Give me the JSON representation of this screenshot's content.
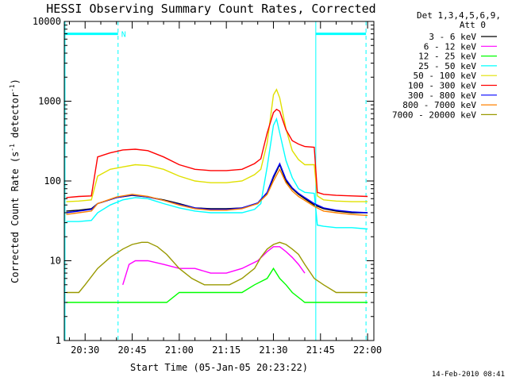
{
  "chart_data": {
    "type": "line",
    "title": "HESSI Observing Summary Count Rates, Corrected",
    "xlabel": "Start Time (05-Jan-05 20:23:22)",
    "ylabel": "Corrected Count Rate (s",
    "ylabel_sup": "-1",
    "ylabel_rest": " detector",
    "ylabel_sup2": "-1",
    "ylabel_end": ")",
    "yscale": "log",
    "ylim": [
      1,
      10000
    ],
    "yticks": [
      "1",
      "10",
      "100",
      "1000",
      "10000"
    ],
    "xlim_min": [
      23.37,
      122.0
    ],
    "xticks": [
      {
        "label": "20:30",
        "min": 30
      },
      {
        "label": "20:45",
        "min": 45
      },
      {
        "label": "21:00",
        "min": 60
      },
      {
        "label": "21:15",
        "min": 75
      },
      {
        "label": "21:30",
        "min": 90
      },
      {
        "label": "21:45",
        "min": 105
      },
      {
        "label": "22:00",
        "min": 120
      }
    ],
    "legend_header": [
      "Det 1,3,4,5,6,9,",
      "Att 0"
    ],
    "series": [
      {
        "name": "3 - 6 keV",
        "color": "#000000",
        "points": [
          [
            24,
            42
          ],
          [
            28,
            43
          ],
          [
            32,
            45
          ],
          [
            34,
            52
          ],
          [
            40,
            62
          ],
          [
            45,
            66
          ],
          [
            50,
            63
          ],
          [
            55,
            58
          ],
          [
            60,
            52
          ],
          [
            65,
            46
          ],
          [
            70,
            45
          ],
          [
            75,
            45
          ],
          [
            80,
            46
          ],
          [
            85,
            52
          ],
          [
            88,
            70
          ],
          [
            90,
            110
          ],
          [
            92,
            160
          ],
          [
            94,
            100
          ],
          [
            96,
            80
          ],
          [
            98,
            68
          ],
          [
            100,
            60
          ],
          [
            103,
            50
          ],
          [
            106,
            45
          ],
          [
            110,
            42
          ],
          [
            115,
            40
          ],
          [
            120,
            40
          ]
        ]
      },
      {
        "name": "6 - 12 keV",
        "color": "#ff00ff",
        "points": [
          [
            42,
            5
          ],
          [
            44,
            9
          ],
          [
            46,
            10
          ],
          [
            50,
            10
          ],
          [
            55,
            9
          ],
          [
            60,
            8
          ],
          [
            65,
            8
          ],
          [
            70,
            7
          ],
          [
            75,
            7
          ],
          [
            80,
            8
          ],
          [
            85,
            10
          ],
          [
            88,
            13
          ],
          [
            90,
            15
          ],
          [
            92,
            15
          ],
          [
            94,
            13
          ],
          [
            96,
            11
          ],
          [
            98,
            9
          ],
          [
            100,
            7
          ]
        ]
      },
      {
        "name": "12 - 25 keV",
        "color": "#00ff00",
        "points": [
          [
            24,
            3
          ],
          [
            28,
            3
          ],
          [
            32,
            3
          ],
          [
            36,
            3
          ],
          [
            40,
            3
          ],
          [
            44,
            3
          ],
          [
            48,
            3
          ],
          [
            52,
            3
          ],
          [
            56,
            3
          ],
          [
            60,
            4
          ],
          [
            64,
            4
          ],
          [
            68,
            4
          ],
          [
            72,
            4
          ],
          [
            76,
            4
          ],
          [
            80,
            4
          ],
          [
            84,
            5
          ],
          [
            88,
            6
          ],
          [
            90,
            8
          ],
          [
            92,
            6
          ],
          [
            94,
            5
          ],
          [
            96,
            4
          ],
          [
            100,
            3
          ],
          [
            104,
            3
          ],
          [
            108,
            3
          ],
          [
            112,
            3
          ],
          [
            116,
            3
          ],
          [
            120,
            3
          ]
        ]
      },
      {
        "name": "25 - 50 keV",
        "color": "#00ffff",
        "points": [
          [
            24,
            31
          ],
          [
            28,
            31
          ],
          [
            32,
            32
          ],
          [
            34,
            40
          ],
          [
            38,
            50
          ],
          [
            42,
            58
          ],
          [
            46,
            62
          ],
          [
            50,
            60
          ],
          [
            55,
            52
          ],
          [
            60,
            46
          ],
          [
            65,
            42
          ],
          [
            70,
            40
          ],
          [
            75,
            40
          ],
          [
            80,
            40
          ],
          [
            84,
            44
          ],
          [
            86,
            52
          ],
          [
            88,
            150
          ],
          [
            90,
            500
          ],
          [
            91,
            600
          ],
          [
            92,
            400
          ],
          [
            94,
            180
          ],
          [
            96,
            110
          ],
          [
            98,
            80
          ],
          [
            100,
            72
          ],
          [
            103,
            70
          ],
          [
            104,
            28
          ],
          [
            106,
            27
          ],
          [
            110,
            26
          ],
          [
            115,
            26
          ],
          [
            120,
            25
          ]
        ]
      },
      {
        "name": "50 - 100 keV",
        "color": "#e0e000",
        "points": [
          [
            24,
            55
          ],
          [
            28,
            56
          ],
          [
            32,
            58
          ],
          [
            34,
            115
          ],
          [
            38,
            140
          ],
          [
            42,
            150
          ],
          [
            46,
            160
          ],
          [
            50,
            156
          ],
          [
            55,
            140
          ],
          [
            60,
            115
          ],
          [
            65,
            100
          ],
          [
            70,
            95
          ],
          [
            75,
            95
          ],
          [
            80,
            100
          ],
          [
            84,
            120
          ],
          [
            86,
            140
          ],
          [
            88,
            300
          ],
          [
            90,
            1200
          ],
          [
            91,
            1400
          ],
          [
            92,
            1100
          ],
          [
            94,
            450
          ],
          [
            96,
            240
          ],
          [
            98,
            185
          ],
          [
            100,
            160
          ],
          [
            103,
            160
          ],
          [
            104,
            65
          ],
          [
            106,
            58
          ],
          [
            110,
            56
          ],
          [
            115,
            55
          ],
          [
            120,
            55
          ]
        ]
      },
      {
        "name": "100 - 300 keV",
        "color": "#ff0000",
        "points": [
          [
            24,
            62
          ],
          [
            28,
            64
          ],
          [
            32,
            65
          ],
          [
            34,
            200
          ],
          [
            38,
            225
          ],
          [
            42,
            245
          ],
          [
            46,
            250
          ],
          [
            50,
            240
          ],
          [
            55,
            200
          ],
          [
            60,
            160
          ],
          [
            65,
            140
          ],
          [
            70,
            135
          ],
          [
            75,
            135
          ],
          [
            80,
            140
          ],
          [
            84,
            165
          ],
          [
            86,
            190
          ],
          [
            88,
            400
          ],
          [
            90,
            720
          ],
          [
            91,
            790
          ],
          [
            92,
            750
          ],
          [
            94,
            440
          ],
          [
            96,
            320
          ],
          [
            98,
            290
          ],
          [
            100,
            270
          ],
          [
            103,
            265
          ],
          [
            104,
            72
          ],
          [
            106,
            68
          ],
          [
            110,
            66
          ],
          [
            115,
            65
          ],
          [
            120,
            64
          ]
        ]
      },
      {
        "name": "300 - 800 keV",
        "color": "#0000ff",
        "points": [
          [
            24,
            40
          ],
          [
            28,
            42
          ],
          [
            32,
            44
          ],
          [
            34,
            52
          ],
          [
            40,
            62
          ],
          [
            45,
            67
          ],
          [
            50,
            63
          ],
          [
            55,
            57
          ],
          [
            60,
            51
          ],
          [
            65,
            46
          ],
          [
            70,
            44
          ],
          [
            75,
            44
          ],
          [
            80,
            46
          ],
          [
            85,
            53
          ],
          [
            88,
            72
          ],
          [
            90,
            115
          ],
          [
            92,
            165
          ],
          [
            94,
            105
          ],
          [
            96,
            82
          ],
          [
            98,
            70
          ],
          [
            100,
            62
          ],
          [
            103,
            52
          ],
          [
            106,
            46
          ],
          [
            110,
            43
          ],
          [
            115,
            41
          ],
          [
            120,
            40
          ]
        ]
      },
      {
        "name": "800 - 7000 keV",
        "color": "#ff8000",
        "points": [
          [
            24,
            38
          ],
          [
            28,
            40
          ],
          [
            32,
            42
          ],
          [
            34,
            52
          ],
          [
            40,
            63
          ],
          [
            45,
            68
          ],
          [
            50,
            64
          ],
          [
            55,
            57
          ],
          [
            60,
            50
          ],
          [
            65,
            45
          ],
          [
            70,
            43
          ],
          [
            75,
            43
          ],
          [
            80,
            45
          ],
          [
            85,
            52
          ],
          [
            88,
            68
          ],
          [
            90,
            100
          ],
          [
            92,
            140
          ],
          [
            94,
            95
          ],
          [
            96,
            75
          ],
          [
            98,
            64
          ],
          [
            100,
            57
          ],
          [
            103,
            48
          ],
          [
            106,
            42
          ],
          [
            110,
            40
          ],
          [
            115,
            38
          ],
          [
            120,
            37
          ]
        ]
      },
      {
        "name": "7000 - 20000 keV",
        "color": "#999900",
        "points": [
          [
            24,
            4
          ],
          [
            28,
            4
          ],
          [
            30,
            5
          ],
          [
            34,
            8
          ],
          [
            38,
            11
          ],
          [
            42,
            14
          ],
          [
            45,
            16
          ],
          [
            48,
            17
          ],
          [
            50,
            17
          ],
          [
            53,
            15
          ],
          [
            56,
            12
          ],
          [
            60,
            8
          ],
          [
            64,
            6
          ],
          [
            68,
            5
          ],
          [
            72,
            5
          ],
          [
            76,
            5
          ],
          [
            80,
            6
          ],
          [
            84,
            8
          ],
          [
            86,
            11
          ],
          [
            88,
            14
          ],
          [
            90,
            16
          ],
          [
            92,
            17
          ],
          [
            94,
            16
          ],
          [
            96,
            14
          ],
          [
            98,
            12
          ],
          [
            100,
            9
          ],
          [
            103,
            6
          ],
          [
            106,
            5
          ],
          [
            110,
            4
          ],
          [
            115,
            4
          ],
          [
            120,
            4
          ]
        ]
      }
    ],
    "annotation_N": "N",
    "footer_date": "14-Feb-2010 08:41"
  }
}
